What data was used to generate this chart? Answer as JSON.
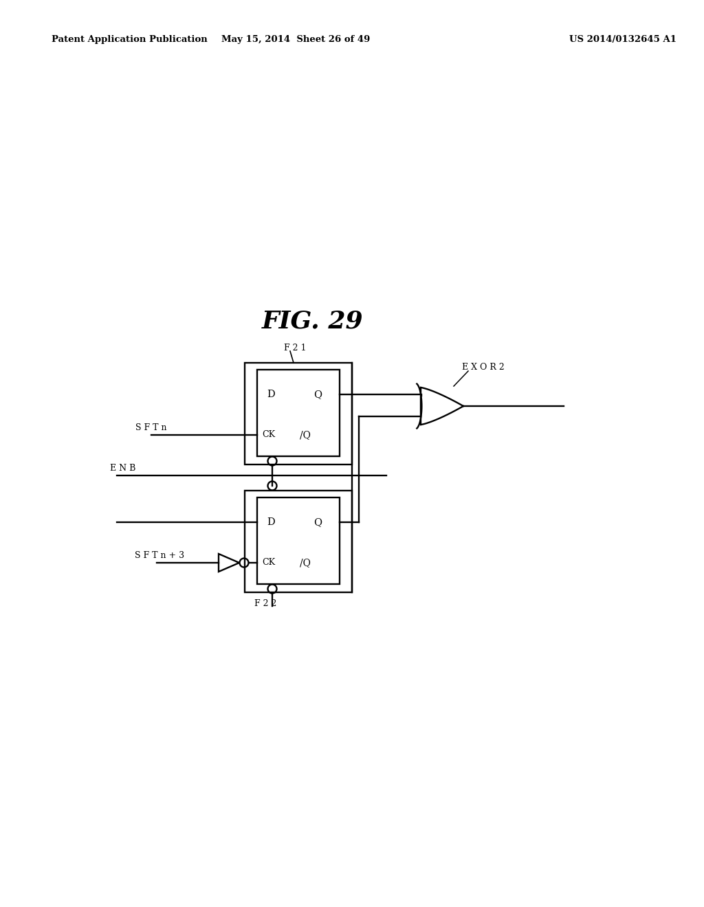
{
  "header_left": "Patent Application Publication",
  "header_mid": "May 15, 2014  Sheet 26 of 49",
  "header_right": "US 2014/0132645 A1",
  "title": "FIG. 29",
  "ff1_label": "F 2 1",
  "ff2_label": "F 2 2",
  "exor_label": "E X O R 2",
  "sft_n_label": "S F T n",
  "enb_label": "E N B",
  "sft_n3_label": "S F T n + 3",
  "bg": "#ffffff",
  "lc": "#000000",
  "header_fontsize": 9.5,
  "title_fontsize": 26,
  "label_fontsize": 9
}
